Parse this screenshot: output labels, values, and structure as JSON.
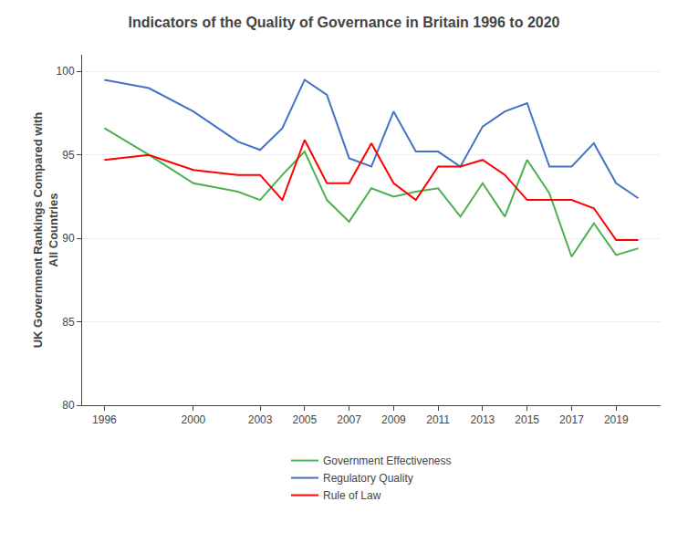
{
  "chart_data": {
    "type": "line",
    "title": "Indicators of the Quality of Governance in Britain 1996 to 2020",
    "ylabel": "UK Government Rankings Compared with\nAll Countries",
    "x": [
      1996,
      1998,
      2000,
      2002,
      2003,
      2004,
      2005,
      2006,
      2007,
      2008,
      2009,
      2010,
      2011,
      2012,
      2013,
      2014,
      2015,
      2016,
      2017,
      2018,
      2019,
      2020
    ],
    "series": [
      {
        "name": "Government Effectiveness",
        "color": "#4CAF50",
        "values": [
          96.6,
          95.0,
          93.3,
          92.8,
          92.3,
          93.8,
          95.2,
          92.3,
          91.0,
          93.0,
          92.5,
          92.8,
          93.0,
          91.3,
          93.3,
          91.3,
          94.7,
          92.7,
          88.9,
          90.9,
          89.0,
          89.4
        ]
      },
      {
        "name": "Regulatory Quality",
        "color": "#4472C4",
        "values": [
          99.5,
          99.0,
          97.6,
          95.8,
          95.3,
          96.6,
          99.5,
          98.6,
          94.8,
          94.3,
          97.6,
          95.2,
          95.2,
          94.3,
          96.7,
          97.6,
          98.1,
          94.3,
          94.3,
          95.7,
          93.3,
          92.4
        ]
      },
      {
        "name": "Rule of Law",
        "color": "#FF0000",
        "values": [
          94.7,
          95.0,
          94.1,
          93.8,
          93.8,
          92.3,
          95.9,
          93.3,
          93.3,
          95.7,
          93.3,
          92.3,
          94.3,
          94.3,
          94.7,
          93.8,
          92.3,
          92.3,
          92.3,
          91.8,
          89.9,
          89.9
        ]
      }
    ],
    "xlim": [
      1995.0,
      2021.0
    ],
    "xticks": [
      1996,
      2000,
      2003,
      2005,
      2007,
      2009,
      2011,
      2013,
      2015,
      2017,
      2019
    ],
    "ylim": [
      80,
      101
    ],
    "yticks": [
      80,
      85,
      90,
      95,
      100
    ],
    "grid": true,
    "legend": "bottom"
  }
}
